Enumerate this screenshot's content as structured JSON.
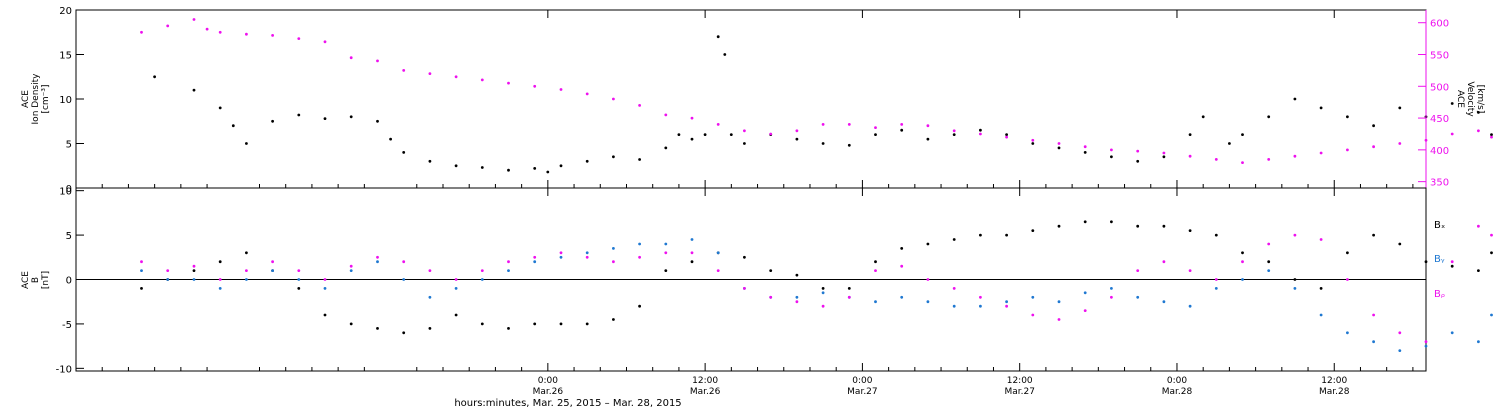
{
  "chart_data": [
    {
      "type": "scatter",
      "panel": "top",
      "ylabel": [
        "ACE",
        "Ion Density",
        "[cm⁻³]"
      ],
      "ylim": [
        0,
        20
      ],
      "yticks": [
        0,
        5,
        10,
        15,
        20
      ],
      "y2label": [
        "ACE",
        "Velocity",
        "[km/s]"
      ],
      "y2lim": [
        340,
        620
      ],
      "y2ticks": [
        350,
        400,
        450,
        500,
        550,
        600
      ],
      "series": [
        {
          "name": "",
          "axis": "left",
          "color": "#000000",
          "points": [
            [
              -30,
              12.5
            ],
            [
              -27,
              11
            ],
            [
              -25,
              9
            ],
            [
              -24,
              7
            ],
            [
              -23,
              5
            ],
            [
              -21,
              7.5
            ],
            [
              -19,
              8.2
            ],
            [
              -17,
              7.8
            ],
            [
              -15,
              8
            ],
            [
              -13,
              7.5
            ],
            [
              -12,
              5.5
            ],
            [
              -11,
              4
            ],
            [
              -9,
              3
            ],
            [
              -7,
              2.5
            ],
            [
              -5,
              2.3
            ],
            [
              -3,
              2
            ],
            [
              -1,
              2.2
            ],
            [
              0,
              1.8
            ],
            [
              1,
              2.5
            ],
            [
              3,
              3
            ],
            [
              5,
              3.5
            ],
            [
              7,
              3.2
            ],
            [
              9,
              4.5
            ],
            [
              10,
              6
            ],
            [
              11,
              5.5
            ],
            [
              12,
              6
            ],
            [
              13,
              17
            ],
            [
              13.5,
              15
            ],
            [
              14,
              6
            ],
            [
              15,
              5
            ],
            [
              17,
              6
            ],
            [
              19,
              5.5
            ],
            [
              21,
              5
            ],
            [
              23,
              4.8
            ],
            [
              25,
              6
            ],
            [
              27,
              6.5
            ],
            [
              29,
              5.5
            ],
            [
              31,
              6
            ],
            [
              33,
              6.5
            ],
            [
              35,
              6
            ],
            [
              37,
              5
            ],
            [
              39,
              4.5
            ],
            [
              41,
              4
            ],
            [
              43,
              3.5
            ],
            [
              45,
              3
            ],
            [
              47,
              3.5
            ],
            [
              49,
              6
            ],
            [
              50,
              8
            ],
            [
              52,
              5
            ],
            [
              53,
              6
            ],
            [
              55,
              8
            ],
            [
              57,
              10
            ],
            [
              59,
              9
            ],
            [
              61,
              8
            ],
            [
              63,
              7
            ],
            [
              65,
              9
            ],
            [
              67,
              8
            ],
            [
              69,
              9.5
            ],
            [
              71,
              8.5
            ],
            [
              72,
              6
            ]
          ]
        },
        {
          "name": "",
          "axis": "right",
          "color": "#ee11ee",
          "points": [
            [
              -31,
              585
            ],
            [
              -29,
              595
            ],
            [
              -27,
              605
            ],
            [
              -26,
              590
            ],
            [
              -25,
              585
            ],
            [
              -23,
              582
            ],
            [
              -21,
              580
            ],
            [
              -19,
              575
            ],
            [
              -17,
              570
            ],
            [
              -15,
              545
            ],
            [
              -13,
              540
            ],
            [
              -11,
              525
            ],
            [
              -9,
              520
            ],
            [
              -7,
              515
            ],
            [
              -5,
              510
            ],
            [
              -3,
              505
            ],
            [
              -1,
              500
            ],
            [
              1,
              495
            ],
            [
              3,
              488
            ],
            [
              5,
              480
            ],
            [
              7,
              470
            ],
            [
              9,
              455
            ],
            [
              11,
              450
            ],
            [
              13,
              440
            ],
            [
              15,
              430
            ],
            [
              17,
              425
            ],
            [
              19,
              430
            ],
            [
              21,
              440
            ],
            [
              23,
              440
            ],
            [
              25,
              435
            ],
            [
              27,
              440
            ],
            [
              29,
              438
            ],
            [
              31,
              430
            ],
            [
              33,
              425
            ],
            [
              35,
              420
            ],
            [
              37,
              415
            ],
            [
              39,
              410
            ],
            [
              41,
              405
            ],
            [
              43,
              400
            ],
            [
              45,
              398
            ],
            [
              47,
              395
            ],
            [
              49,
              390
            ],
            [
              51,
              385
            ],
            [
              53,
              380
            ],
            [
              55,
              385
            ],
            [
              57,
              390
            ],
            [
              59,
              395
            ],
            [
              61,
              400
            ],
            [
              63,
              405
            ],
            [
              65,
              410
            ],
            [
              67,
              415
            ],
            [
              69,
              425
            ],
            [
              71,
              430
            ],
            [
              72,
              420
            ]
          ]
        }
      ]
    },
    {
      "type": "scatter",
      "panel": "bottom",
      "ylabel": [
        "ACE",
        "B",
        "[nT]"
      ],
      "ylim": [
        -10.3,
        10.3
      ],
      "yticks": [
        -10,
        -5,
        0,
        5,
        10
      ],
      "legend_position": "right",
      "series": [
        {
          "name": "Bₓ",
          "color": "#000000",
          "points": [
            [
              -31,
              -1
            ],
            [
              -29,
              0
            ],
            [
              -27,
              1
            ],
            [
              -25,
              2
            ],
            [
              -23,
              3
            ],
            [
              -21,
              1
            ],
            [
              -19,
              -1
            ],
            [
              -17,
              -4
            ],
            [
              -15,
              -5
            ],
            [
              -13,
              -5.5
            ],
            [
              -11,
              -6
            ],
            [
              -9,
              -5.5
            ],
            [
              -7,
              -4
            ],
            [
              -5,
              -5
            ],
            [
              -3,
              -5.5
            ],
            [
              -1,
              -5
            ],
            [
              1,
              -5
            ],
            [
              3,
              -5
            ],
            [
              5,
              -4.5
            ],
            [
              7,
              -3
            ],
            [
              9,
              1
            ],
            [
              11,
              2
            ],
            [
              13,
              3
            ],
            [
              15,
              2.5
            ],
            [
              17,
              1
            ],
            [
              19,
              0.5
            ],
            [
              21,
              -1
            ],
            [
              23,
              -1
            ],
            [
              25,
              2
            ],
            [
              27,
              3.5
            ],
            [
              29,
              4
            ],
            [
              31,
              4.5
            ],
            [
              33,
              5
            ],
            [
              35,
              5
            ],
            [
              37,
              5.5
            ],
            [
              39,
              6
            ],
            [
              41,
              6.5
            ],
            [
              43,
              6.5
            ],
            [
              45,
              6
            ],
            [
              47,
              6
            ],
            [
              49,
              5.5
            ],
            [
              51,
              5
            ],
            [
              53,
              3
            ],
            [
              55,
              2
            ],
            [
              57,
              0
            ],
            [
              59,
              -1
            ],
            [
              61,
              3
            ],
            [
              63,
              5
            ],
            [
              65,
              4
            ],
            [
              67,
              2
            ],
            [
              69,
              1.5
            ],
            [
              71,
              1
            ],
            [
              72,
              3
            ]
          ]
        },
        {
          "name": "Bᵧ",
          "color": "#1f78d1",
          "points": [
            [
              -31,
              1
            ],
            [
              -29,
              0
            ],
            [
              -27,
              0
            ],
            [
              -25,
              -1
            ],
            [
              -23,
              0
            ],
            [
              -21,
              1
            ],
            [
              -19,
              0
            ],
            [
              -17,
              -1
            ],
            [
              -15,
              1
            ],
            [
              -13,
              2
            ],
            [
              -11,
              0
            ],
            [
              -9,
              -2
            ],
            [
              -7,
              -1
            ],
            [
              -5,
              0
            ],
            [
              -3,
              1
            ],
            [
              -1,
              2
            ],
            [
              1,
              2.5
            ],
            [
              3,
              3
            ],
            [
              5,
              3.5
            ],
            [
              7,
              4
            ],
            [
              9,
              4
            ],
            [
              11,
              4.5
            ],
            [
              13,
              3
            ],
            [
              15,
              -1
            ],
            [
              17,
              -2
            ],
            [
              19,
              -2
            ],
            [
              21,
              -1.5
            ],
            [
              23,
              -2
            ],
            [
              25,
              -2.5
            ],
            [
              27,
              -2
            ],
            [
              29,
              -2.5
            ],
            [
              31,
              -3
            ],
            [
              33,
              -3
            ],
            [
              35,
              -2.5
            ],
            [
              37,
              -2
            ],
            [
              39,
              -2.5
            ],
            [
              41,
              -1.5
            ],
            [
              43,
              -1
            ],
            [
              45,
              -2
            ],
            [
              47,
              -2.5
            ],
            [
              49,
              -3
            ],
            [
              51,
              -1
            ],
            [
              53,
              0
            ],
            [
              55,
              1
            ],
            [
              57,
              -1
            ],
            [
              59,
              -4
            ],
            [
              61,
              -6
            ],
            [
              63,
              -7
            ],
            [
              65,
              -8
            ],
            [
              67,
              -7.5
            ],
            [
              69,
              -6
            ],
            [
              71,
              -7
            ],
            [
              72,
              -4
            ]
          ]
        },
        {
          "name": "Bᵨ",
          "color": "#ee11ee",
          "points": [
            [
              -31,
              2
            ],
            [
              -29,
              1
            ],
            [
              -27,
              1.5
            ],
            [
              -25,
              0
            ],
            [
              -23,
              1
            ],
            [
              -21,
              2
            ],
            [
              -19,
              1
            ],
            [
              -17,
              0
            ],
            [
              -15,
              1.5
            ],
            [
              -13,
              2.5
            ],
            [
              -11,
              2
            ],
            [
              -9,
              1
            ],
            [
              -7,
              0
            ],
            [
              -5,
              1
            ],
            [
              -3,
              2
            ],
            [
              -1,
              2.5
            ],
            [
              1,
              3
            ],
            [
              3,
              2.5
            ],
            [
              5,
              2
            ],
            [
              7,
              2.5
            ],
            [
              9,
              3
            ],
            [
              11,
              3
            ],
            [
              13,
              1
            ],
            [
              15,
              -1
            ],
            [
              17,
              -2
            ],
            [
              19,
              -2.5
            ],
            [
              21,
              -3
            ],
            [
              23,
              -2
            ],
            [
              25,
              1
            ],
            [
              27,
              1.5
            ],
            [
              29,
              0
            ],
            [
              31,
              -1
            ],
            [
              33,
              -2
            ],
            [
              35,
              -3
            ],
            [
              37,
              -4
            ],
            [
              39,
              -4.5
            ],
            [
              41,
              -3.5
            ],
            [
              43,
              -2
            ],
            [
              45,
              1
            ],
            [
              47,
              2
            ],
            [
              49,
              1
            ],
            [
              51,
              0
            ],
            [
              53,
              2
            ],
            [
              55,
              4
            ],
            [
              57,
              5
            ],
            [
              59,
              4.5
            ],
            [
              61,
              0
            ],
            [
              63,
              -4
            ],
            [
              65,
              -6
            ],
            [
              67,
              -7
            ],
            [
              69,
              2
            ],
            [
              71,
              6
            ],
            [
              72,
              5
            ]
          ]
        }
      ]
    }
  ],
  "time_axis": {
    "major_ticks": [
      {
        "hours": 0,
        "time": "0:00",
        "date": "Mar.26"
      },
      {
        "hours": 12,
        "time": "12:00",
        "date": "Mar.26"
      },
      {
        "hours": 24,
        "time": "0:00",
        "date": "Mar.27"
      },
      {
        "hours": 36,
        "time": "12:00",
        "date": "Mar.27"
      },
      {
        "hours": 48,
        "time": "0:00",
        "date": "Mar.28"
      },
      {
        "hours": 60,
        "time": "12:00",
        "date": "Mar.28"
      }
    ],
    "range_hours": [
      -36,
      67
    ],
    "xlabel": "hours:minutes, Mar. 25, 2015 – Mar. 28, 2015"
  },
  "colors": {
    "black": "#000000",
    "magenta": "#ee11ee",
    "blue": "#1f78d1"
  }
}
